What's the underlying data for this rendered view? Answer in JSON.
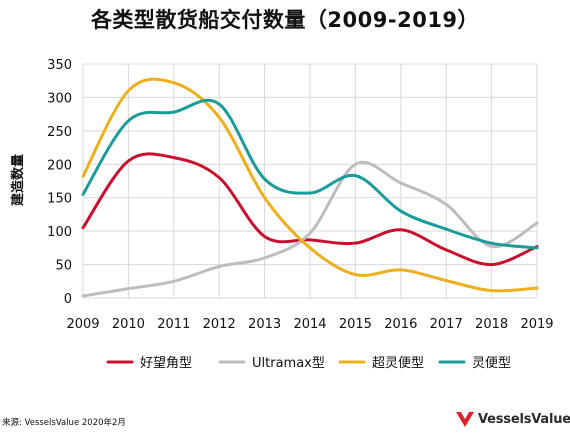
{
  "title": "各类型散货船交付数量（2009-2019）",
  "source": "来源: VesselsValue 2020年2月",
  "logo": {
    "text": "VesselsValue",
    "icon": "vesselsvalue-logo-icon",
    "color": "#d9232d"
  },
  "chart_data": {
    "type": "line",
    "title": "各类型散货船交付数量（2009-2019）",
    "xlabel": "",
    "ylabel": "建造数量",
    "x": [
      2009,
      2010,
      2011,
      2012,
      2013,
      2014,
      2015,
      2016,
      2017,
      2018,
      2019
    ],
    "x_ticks": [
      "2009",
      "2010",
      "2011",
      "2012",
      "2013",
      "2014",
      "2015",
      "2016",
      "2017",
      "2018",
      "2019"
    ],
    "y_ticks": [
      "0",
      "50",
      "100",
      "150",
      "200",
      "250",
      "300",
      "350"
    ],
    "ylim": [
      0,
      350
    ],
    "grid": true,
    "legend_position": "bottom",
    "series": [
      {
        "name": "好望角型",
        "color": "#c8102e",
        "values": [
          105,
          205,
          210,
          180,
          92,
          87,
          82,
          102,
          72,
          50,
          77
        ]
      },
      {
        "name": "Ultramax型",
        "color": "#bdbdbd",
        "values": [
          3,
          14,
          25,
          47,
          60,
          97,
          200,
          172,
          140,
          77,
          112
        ]
      },
      {
        "name": "超灵便型",
        "color": "#f0ad1c",
        "values": [
          182,
          310,
          322,
          270,
          150,
          75,
          35,
          42,
          26,
          11,
          15
        ]
      },
      {
        "name": "灵便型",
        "color": "#1a9c9a",
        "values": [
          155,
          265,
          278,
          290,
          178,
          157,
          183,
          130,
          103,
          82,
          75
        ]
      }
    ]
  }
}
